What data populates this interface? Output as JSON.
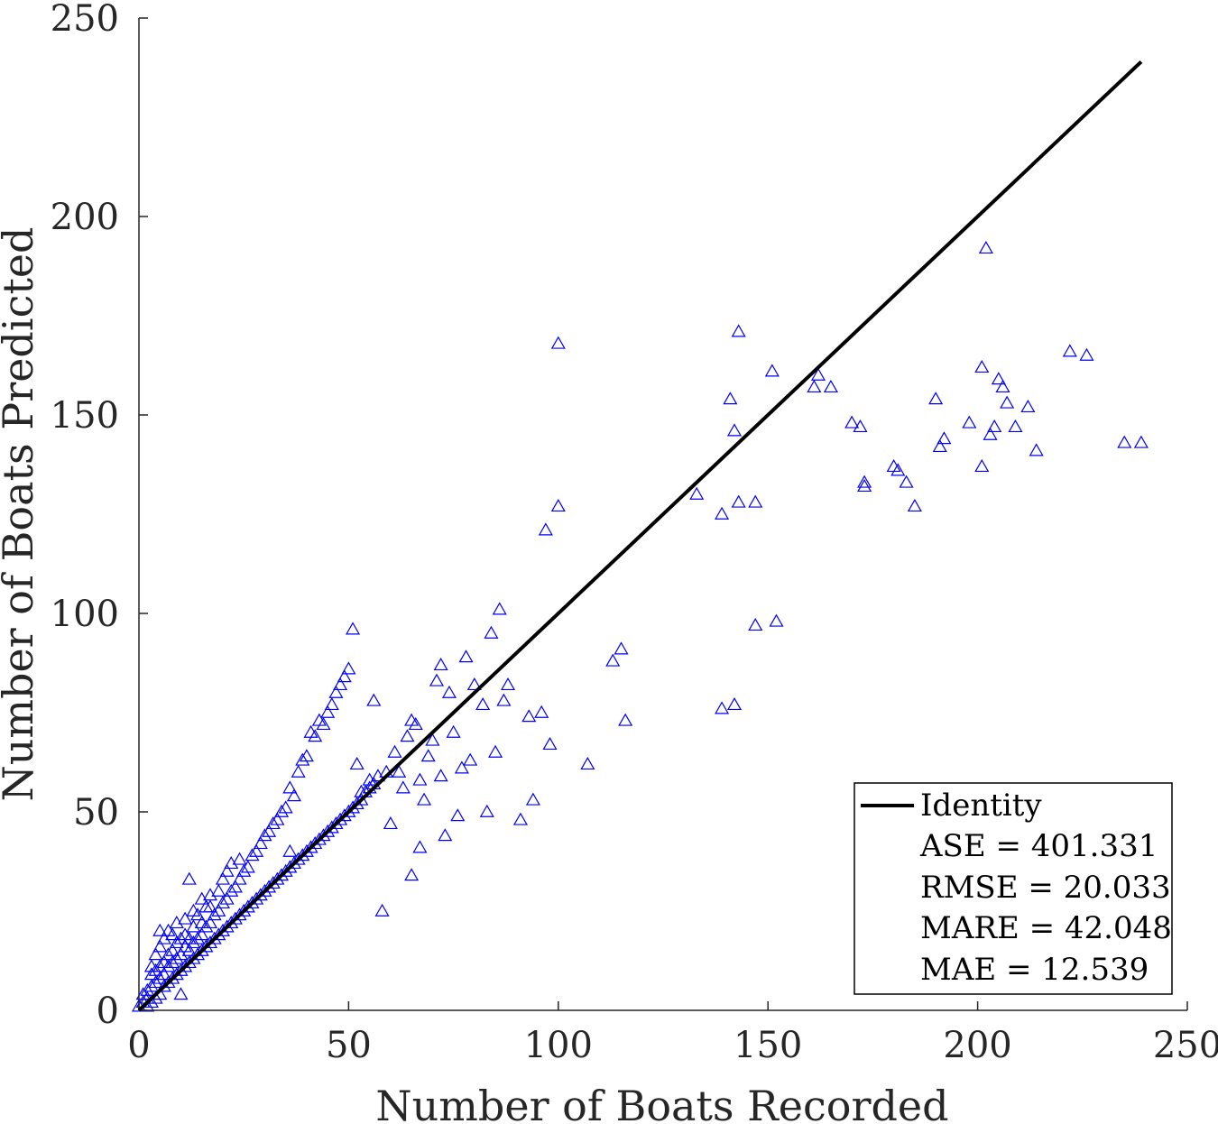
{
  "chart_data": {
    "type": "scatter",
    "xlabel": "Number of Boats Recorded",
    "ylabel": "Number of Boats Predicted",
    "xlim": [
      0,
      250
    ],
    "ylim": [
      0,
      250
    ],
    "xticks": [
      "0",
      "50",
      "100",
      "150",
      "200",
      "250"
    ],
    "yticks": [
      "0",
      "50",
      "100",
      "150",
      "200",
      "250"
    ],
    "grid": false,
    "legend_position": "bottom-right",
    "legend_entries": [
      "Identity",
      "ASE = 401.331",
      "RMSE = 20.033",
      "MARE = 42.048",
      "MAE = 12.539"
    ],
    "colors": {
      "points": "#0000ff",
      "identity": "#000000",
      "axis": "#262626"
    },
    "identity_line": {
      "name": "Identity",
      "x": [
        0,
        239
      ],
      "y": [
        0,
        239
      ]
    },
    "series": [
      {
        "marker": "triangle-open",
        "x": [
          0,
          1,
          1,
          2,
          2,
          2,
          3,
          3,
          3,
          3,
          4,
          4,
          4,
          4,
          5,
          5,
          5,
          5,
          5,
          6,
          6,
          6,
          6,
          7,
          7,
          7,
          7,
          8,
          8,
          8,
          8,
          9,
          9,
          9,
          9,
          10,
          10,
          10,
          10,
          11,
          11,
          11,
          11,
          12,
          12,
          12,
          12,
          13,
          13,
          13,
          13,
          14,
          14,
          14,
          15,
          15,
          15,
          15,
          16,
          16,
          16,
          17,
          17,
          17,
          17,
          18,
          18,
          19,
          19,
          19,
          20,
          20,
          20,
          21,
          21,
          21,
          22,
          22,
          22,
          23,
          23,
          24,
          24,
          24,
          25,
          25,
          26,
          26,
          27,
          27,
          28,
          28,
          29,
          29,
          30,
          30,
          31,
          31,
          32,
          32,
          33,
          33,
          34,
          34,
          35,
          35,
          36,
          36,
          36,
          37,
          37,
          38,
          38,
          39,
          39,
          40,
          40,
          41,
          41,
          42,
          42,
          43,
          43,
          44,
          44,
          45,
          45,
          46,
          46,
          47,
          47,
          48,
          48,
          49,
          49,
          50,
          50,
          51,
          51,
          52,
          52,
          53,
          53,
          54,
          55,
          55,
          56,
          56,
          57,
          58,
          59,
          60,
          61,
          62,
          63,
          64,
          65,
          65,
          66,
          67,
          67,
          68,
          69,
          70,
          71,
          72,
          72,
          73,
          74,
          75,
          76,
          77,
          78,
          79,
          80,
          82,
          83,
          84,
          85,
          86,
          87,
          88,
          91,
          93,
          94,
          96,
          97,
          98,
          100,
          100,
          107,
          113,
          115,
          116,
          133,
          139,
          139,
          141,
          142,
          142,
          143,
          143,
          147,
          147,
          151,
          152,
          161,
          162,
          165,
          170,
          172,
          173,
          173,
          180,
          181,
          183,
          185,
          190,
          191,
          192,
          198,
          201,
          201,
          202,
          203,
          204,
          205,
          206,
          207,
          209,
          212,
          214,
          222,
          226,
          235,
          239
        ],
        "y": [
          1,
          2,
          4,
          1,
          3,
          5,
          2,
          6,
          9,
          11,
          3,
          7,
          10,
          14,
          4,
          8,
          11,
          16,
          20,
          6,
          9,
          12,
          18,
          7,
          11,
          14,
          20,
          8,
          12,
          15,
          19,
          9,
          13,
          17,
          22,
          10,
          14,
          18,
          4,
          11,
          16,
          19,
          23,
          12,
          15,
          18,
          33,
          13,
          17,
          21,
          25,
          14,
          18,
          24,
          15,
          19,
          22,
          28,
          16,
          21,
          26,
          17,
          22,
          26,
          29,
          18,
          24,
          19,
          25,
          30,
          20,
          27,
          33,
          21,
          28,
          35,
          22,
          30,
          37,
          23,
          31,
          24,
          33,
          38,
          25,
          35,
          26,
          36,
          27,
          39,
          28,
          40,
          29,
          42,
          30,
          44,
          31,
          45,
          32,
          47,
          33,
          48,
          34,
          50,
          35,
          51,
          36,
          40,
          56,
          37,
          54,
          38,
          60,
          39,
          63,
          40,
          64,
          41,
          70,
          42,
          69,
          43,
          73,
          44,
          72,
          45,
          75,
          46,
          77,
          47,
          80,
          48,
          82,
          49,
          84,
          50,
          86,
          51,
          96,
          52,
          62,
          53,
          55,
          55,
          56,
          58,
          57,
          78,
          59,
          25,
          60,
          47,
          65,
          60,
          56,
          69,
          34,
          73,
          72,
          41,
          58,
          53,
          64,
          68,
          83,
          59,
          87,
          44,
          80,
          70,
          49,
          61,
          89,
          63,
          82,
          77,
          50,
          95,
          65,
          101,
          78,
          82,
          48,
          74,
          53,
          75,
          121,
          67,
          127,
          168,
          62,
          88,
          91,
          73,
          130,
          125,
          76,
          154,
          146,
          77,
          171,
          128,
          97,
          128,
          161,
          98,
          157,
          160,
          157,
          148,
          147,
          133,
          132,
          137,
          136,
          133,
          127,
          154,
          142,
          144,
          148,
          137,
          162,
          192,
          145,
          147,
          159,
          157,
          153,
          147,
          152,
          141,
          166,
          165,
          143,
          143
        ]
      }
    ]
  }
}
